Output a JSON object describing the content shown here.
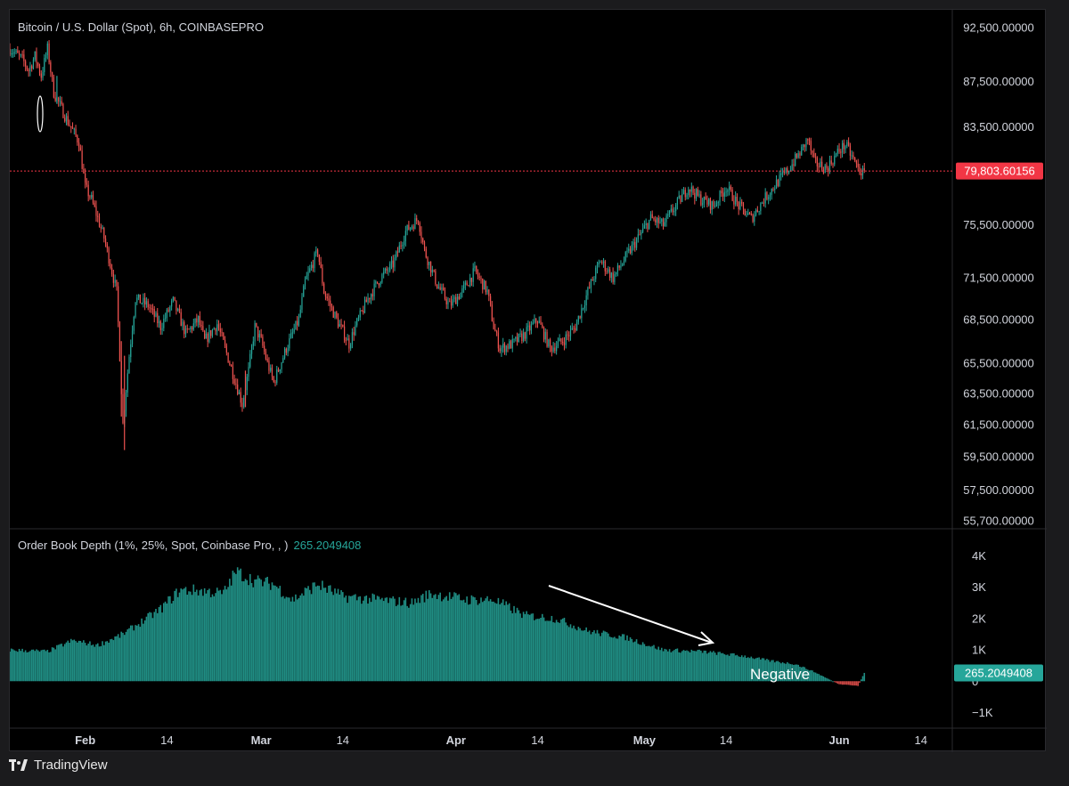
{
  "app": {
    "brand": "TradingView"
  },
  "price_pane": {
    "title": "Bitcoin / U.S. Dollar (Spot), 6h, COINBASEPRO"
  },
  "indicator_pane": {
    "title": "Order Book Depth (1%, 25%, Spot, Coinbase Pro, , )",
    "value": "265.2049408"
  },
  "colors": {
    "background": "#000000",
    "up": "#26a69a",
    "down": "#ef5350",
    "last_price": "#f23645",
    "grid": "#2a2a2e",
    "text": "#d1d4dc"
  },
  "chart_data": [
    {
      "type": "candlestick",
      "title": "Bitcoin / U.S. Dollar (Spot), 6h, COINBASEPRO",
      "y_ticks": [
        "92,500.00000",
        "87,500.00000",
        "83,500.00000",
        "75,500.00000",
        "71,500.00000",
        "68,500.00000",
        "65,500.00000",
        "63,500.00000",
        "61,500.00000",
        "59,500.00000",
        "57,500.00000",
        "55,700.00000"
      ],
      "y_scale": "log",
      "ylim": [
        55500,
        93500
      ],
      "last_price": {
        "label": "79,803.60156",
        "value": 79803.60156
      },
      "x_ticks": [
        "Feb",
        "14",
        "Mar",
        "14",
        "Apr",
        "14",
        "May",
        "14",
        "Jun",
        "14"
      ],
      "x_range": [
        "2025-01-20",
        "2025-06-19"
      ],
      "path": [
        [
          "2025-01-20",
          90500
        ],
        [
          "2025-01-22",
          89500
        ],
        [
          "2025-01-23",
          88500
        ],
        [
          "2025-01-24",
          89800
        ],
        [
          "2025-01-25",
          88000
        ],
        [
          "2025-01-26",
          90500
        ],
        [
          "2025-01-27",
          86500
        ],
        [
          "2025-01-29",
          84200
        ],
        [
          "2025-01-31",
          82200
        ],
        [
          "2025-02-01",
          78500
        ],
        [
          "2025-02-02",
          77500
        ],
        [
          "2025-02-03",
          76000
        ],
        [
          "2025-02-04",
          74500
        ],
        [
          "2025-02-05",
          72500
        ],
        [
          "2025-02-06",
          70500
        ],
        [
          "2025-02-07",
          61500
        ],
        [
          "2025-02-08",
          66000
        ],
        [
          "2025-02-09",
          70000
        ],
        [
          "2025-02-11",
          69500
        ],
        [
          "2025-02-13",
          68000
        ],
        [
          "2025-02-15",
          69800
        ],
        [
          "2025-02-17",
          67500
        ],
        [
          "2025-02-19",
          68500
        ],
        [
          "2025-02-20",
          67000
        ],
        [
          "2025-02-22",
          68200
        ],
        [
          "2025-02-24",
          65500
        ],
        [
          "2025-02-26",
          62800
        ],
        [
          "2025-02-27",
          65000
        ],
        [
          "2025-02-28",
          68000
        ],
        [
          "2025-03-01",
          67000
        ],
        [
          "2025-03-02",
          65500
        ],
        [
          "2025-03-03",
          64200
        ],
        [
          "2025-03-05",
          66500
        ],
        [
          "2025-03-07",
          68500
        ],
        [
          "2025-03-08",
          71200
        ],
        [
          "2025-03-10",
          73500
        ],
        [
          "2025-03-11",
          70500
        ],
        [
          "2025-03-13",
          68500
        ],
        [
          "2025-03-15",
          66800
        ],
        [
          "2025-03-16",
          68000
        ],
        [
          "2025-03-18",
          70000
        ],
        [
          "2025-03-20",
          71500
        ],
        [
          "2025-03-22",
          72500
        ],
        [
          "2025-03-24",
          75000
        ],
        [
          "2025-03-26",
          76000
        ],
        [
          "2025-03-27",
          73500
        ],
        [
          "2025-03-29",
          71000
        ],
        [
          "2025-03-31",
          69500
        ],
        [
          "2025-04-02",
          70500
        ],
        [
          "2025-04-04",
          72000
        ],
        [
          "2025-04-06",
          70500
        ],
        [
          "2025-04-07",
          68000
        ],
        [
          "2025-04-08",
          66500
        ],
        [
          "2025-04-10",
          66800
        ],
        [
          "2025-04-12",
          67500
        ],
        [
          "2025-04-14",
          68500
        ],
        [
          "2025-04-16",
          66500
        ],
        [
          "2025-04-18",
          67000
        ],
        [
          "2025-04-20",
          68000
        ],
        [
          "2025-04-22",
          70500
        ],
        [
          "2025-04-24",
          72800
        ],
        [
          "2025-04-26",
          71500
        ],
        [
          "2025-04-28",
          73000
        ],
        [
          "2025-04-30",
          74500
        ],
        [
          "2025-05-02",
          76000
        ],
        [
          "2025-05-04",
          75500
        ],
        [
          "2025-05-06",
          77000
        ],
        [
          "2025-05-08",
          78500
        ],
        [
          "2025-05-10",
          77500
        ],
        [
          "2025-05-12",
          77000
        ],
        [
          "2025-05-14",
          78500
        ],
        [
          "2025-05-16",
          77000
        ],
        [
          "2025-05-18",
          76000
        ],
        [
          "2025-05-20",
          77500
        ],
        [
          "2025-05-22",
          78800
        ],
        [
          "2025-05-24",
          80000
        ],
        [
          "2025-05-26",
          81500
        ],
        [
          "2025-05-27",
          82500
        ],
        [
          "2025-05-28",
          80500
        ],
        [
          "2025-05-30",
          80000
        ],
        [
          "2025-06-01",
          81500
        ],
        [
          "2025-06-02",
          82000
        ],
        [
          "2025-06-03",
          81000
        ],
        [
          "2025-06-04",
          80000
        ],
        [
          "2025-06-05",
          79500
        ]
      ]
    },
    {
      "type": "bar",
      "title": "Order Book Depth (1%, 25%, Spot, Coinbase Pro, , )",
      "last_value": "265.2049408",
      "y_ticks": [
        "4K",
        "3K",
        "2K",
        "1K",
        "0",
        "−1K"
      ],
      "ylim": [
        -1300,
        4300
      ],
      "x_ticks": [
        "Feb",
        "14",
        "Mar",
        "14",
        "Apr",
        "14",
        "May",
        "14",
        "Jun",
        "14"
      ],
      "x_range": [
        "2025-01-20",
        "2025-06-19"
      ],
      "profile": [
        [
          "2025-01-20",
          1000
        ],
        [
          "2025-01-26",
          950
        ],
        [
          "2025-01-30",
          1300
        ],
        [
          "2025-02-03",
          1150
        ],
        [
          "2025-02-07",
          1500
        ],
        [
          "2025-02-10",
          1900
        ],
        [
          "2025-02-13",
          2300
        ],
        [
          "2025-02-16",
          2900
        ],
        [
          "2025-02-19",
          2900
        ],
        [
          "2025-02-23",
          2800
        ],
        [
          "2025-02-25",
          3500
        ],
        [
          "2025-02-28",
          3200
        ],
        [
          "2025-03-03",
          3100
        ],
        [
          "2025-03-06",
          2600
        ],
        [
          "2025-03-10",
          3100
        ],
        [
          "2025-03-14",
          2700
        ],
        [
          "2025-03-20",
          2600
        ],
        [
          "2025-03-25",
          2500
        ],
        [
          "2025-03-28",
          2800
        ],
        [
          "2025-04-03",
          2600
        ],
        [
          "2025-04-07",
          2600
        ],
        [
          "2025-04-09",
          2400
        ],
        [
          "2025-04-12",
          2100
        ],
        [
          "2025-04-17",
          2000
        ],
        [
          "2025-04-22",
          1600
        ],
        [
          "2025-04-28",
          1400
        ],
        [
          "2025-05-04",
          1000
        ],
        [
          "2025-05-10",
          950
        ],
        [
          "2025-05-17",
          800
        ],
        [
          "2025-05-21",
          650
        ],
        [
          "2025-05-25",
          550
        ],
        [
          "2025-05-28",
          300
        ],
        [
          "2025-05-30",
          100
        ],
        [
          "2025-06-01",
          -100
        ],
        [
          "2025-06-04",
          -150
        ],
        [
          "2025-06-05",
          265
        ]
      ]
    }
  ],
  "annotations": {
    "negative_label": "Negative"
  }
}
